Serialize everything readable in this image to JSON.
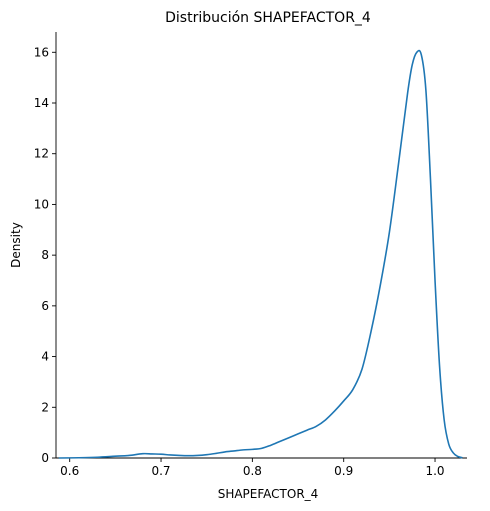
{
  "chart_data": {
    "type": "line",
    "title": "Distribución SHAPEFACTOR_4",
    "xlabel": "SHAPEFACTOR_4",
    "ylabel": "Density",
    "xlim": [
      0.585,
      1.035
    ],
    "ylim": [
      0,
      16.8
    ],
    "xticks": [
      0.6,
      0.7,
      0.8,
      0.9,
      1.0
    ],
    "xtick_labels": [
      "0.6",
      "0.7",
      "0.8",
      "0.9",
      "1.0"
    ],
    "yticks": [
      0,
      2,
      4,
      6,
      8,
      10,
      12,
      14,
      16
    ],
    "ytick_labels": [
      "0",
      "2",
      "4",
      "6",
      "8",
      "10",
      "12",
      "14",
      "16"
    ],
    "grid": false,
    "spines": "left-bottom",
    "series": [
      {
        "color": "#1f77b4",
        "x": [
          0.588,
          0.61,
          0.63,
          0.65,
          0.665,
          0.68,
          0.69,
          0.7,
          0.71,
          0.72,
          0.73,
          0.74,
          0.75,
          0.76,
          0.77,
          0.78,
          0.79,
          0.8,
          0.81,
          0.82,
          0.83,
          0.84,
          0.85,
          0.86,
          0.87,
          0.88,
          0.89,
          0.9,
          0.91,
          0.92,
          0.93,
          0.94,
          0.95,
          0.96,
          0.97,
          0.975,
          0.98,
          0.985,
          0.99,
          0.995,
          1.0,
          1.005,
          1.01,
          1.015,
          1.02,
          1.025,
          1.03
        ],
        "y": [
          0.0,
          0.01,
          0.03,
          0.07,
          0.1,
          0.17,
          0.16,
          0.15,
          0.12,
          0.1,
          0.09,
          0.1,
          0.13,
          0.18,
          0.24,
          0.28,
          0.32,
          0.34,
          0.38,
          0.5,
          0.65,
          0.8,
          0.95,
          1.1,
          1.25,
          1.5,
          1.85,
          2.25,
          2.7,
          3.5,
          5.0,
          6.8,
          8.9,
          11.6,
          14.4,
          15.5,
          16.0,
          15.9,
          14.5,
          11.0,
          7.0,
          3.6,
          1.5,
          0.55,
          0.2,
          0.06,
          0.01
        ]
      }
    ]
  }
}
